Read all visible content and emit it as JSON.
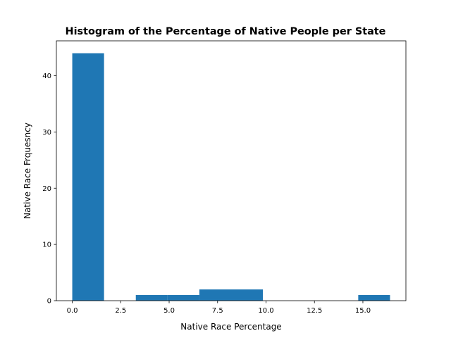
{
  "chart_data": {
    "type": "bar",
    "title": "Histogram of the Percentage of Native People per State",
    "xlabel": "Native Race Percentage",
    "ylabel": "Native Race Frquesncy",
    "bars": [
      {
        "x0": 0.0,
        "x1": 1.64,
        "value": 44
      },
      {
        "x0": 1.64,
        "x1": 3.28,
        "value": 0
      },
      {
        "x0": 3.28,
        "x1": 4.92,
        "value": 1
      },
      {
        "x0": 4.92,
        "x1": 6.56,
        "value": 1
      },
      {
        "x0": 6.56,
        "x1": 8.2,
        "value": 2
      },
      {
        "x0": 8.2,
        "x1": 9.84,
        "value": 2
      },
      {
        "x0": 9.84,
        "x1": 11.48,
        "value": 0
      },
      {
        "x0": 11.48,
        "x1": 13.12,
        "value": 0
      },
      {
        "x0": 13.12,
        "x1": 14.76,
        "value": 0
      },
      {
        "x0": 14.76,
        "x1": 16.4,
        "value": 1
      }
    ],
    "xlim": [
      -0.82,
      17.22
    ],
    "ylim": [
      0,
      46.2
    ],
    "xticks": [
      0.0,
      2.5,
      5.0,
      7.5,
      10.0,
      12.5,
      15.0
    ],
    "xtick_labels": [
      "0.0",
      "2.5",
      "5.0",
      "7.5",
      "10.0",
      "12.5",
      "15.0"
    ],
    "yticks": [
      0,
      10,
      20,
      30,
      40
    ],
    "ytick_labels": [
      "0",
      "10",
      "20",
      "30",
      "40"
    ],
    "bar_color": "#1f77b4",
    "grid": false,
    "legend": "none"
  }
}
